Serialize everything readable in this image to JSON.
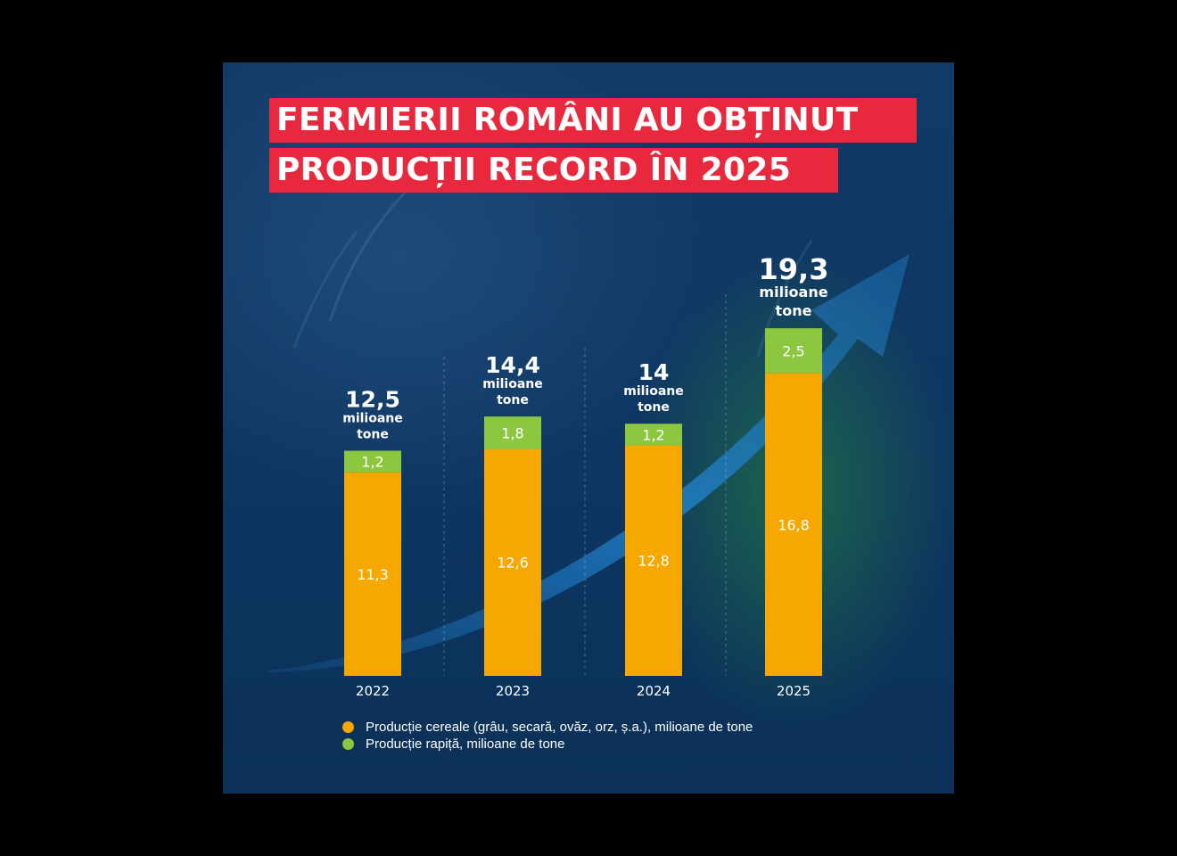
{
  "title": {
    "line1": "FERMIERII ROMÂNI AU OBȚINUT",
    "line2": "PRODUCȚII RECORD ÎN 2025"
  },
  "colors": {
    "cereal": "#f7a800",
    "rapeseed": "#8dc63f",
    "title_bg": "#e8283c"
  },
  "chart_data": {
    "type": "bar",
    "stacked": true,
    "categories": [
      "2022",
      "2023",
      "2024",
      "2025"
    ],
    "series": [
      {
        "name": "Producție cereale (grâu, secară, ovăz, orz, ș.a.), milioane de tone",
        "values": [
          11.3,
          12.6,
          12.8,
          16.8
        ],
        "labels": [
          "11,3",
          "12,6",
          "12,8",
          "16,8"
        ]
      },
      {
        "name": "Producție rapiță, milioane de tone",
        "values": [
          1.2,
          1.8,
          1.2,
          2.5
        ],
        "labels": [
          "1,2",
          "1,8",
          "1,2",
          "2,5"
        ]
      }
    ],
    "totals": [
      12.5,
      14.4,
      14,
      19.3
    ],
    "total_labels": [
      "12,5",
      "14,4",
      "14",
      "19,3"
    ],
    "total_unit_line1": "milioane",
    "total_unit_line2": "tone",
    "legend_position": "bottom-left",
    "grid": false
  }
}
